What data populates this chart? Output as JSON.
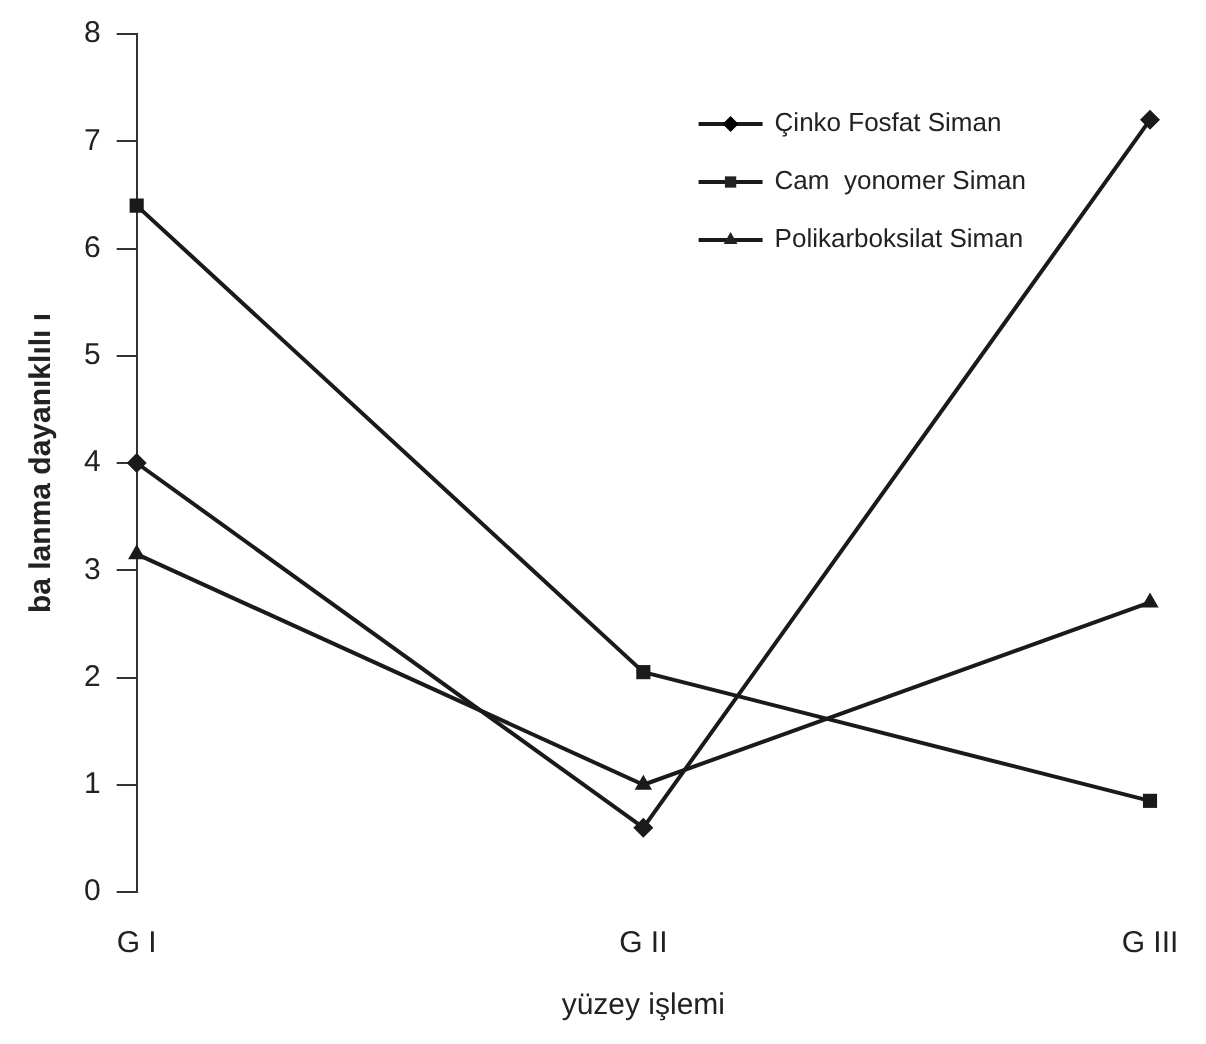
{
  "chart_data": {
    "type": "line",
    "xlabel": "yüzey işlemi",
    "ylabel": "ba lanma dayanıklılı ı",
    "categories": [
      "G I",
      "G II",
      "G III"
    ],
    "series": [
      {
        "name": "Çinko Fosfat Siman",
        "color": "#1a1a1a",
        "marker": "diamond",
        "values": [
          4.0,
          0.6,
          7.2
        ]
      },
      {
        "name": "Cam  yonomer Siman",
        "color": "#1a1a1a",
        "marker": "square",
        "values": [
          6.4,
          2.05,
          0.85
        ]
      },
      {
        "name": "Polikarboksilat Siman",
        "color": "#1a1a1a",
        "marker": "triangle",
        "values": [
          3.15,
          1.0,
          2.7
        ]
      }
    ],
    "ylim": [
      0,
      8
    ],
    "yticks": [
      0,
      1,
      2,
      3,
      4,
      5,
      6,
      7,
      8
    ],
    "grid": false,
    "legend": "top right",
    "line_style": "solid"
  }
}
